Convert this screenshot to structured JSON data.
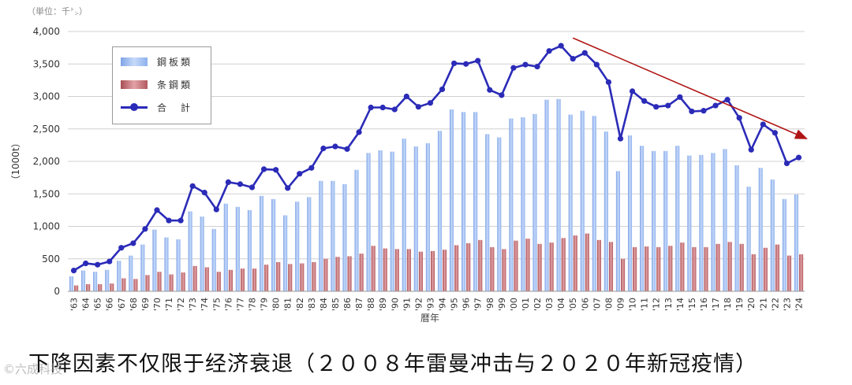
{
  "unit_note": "（単位：千㌧）",
  "caption": "下降因素不仅限于经济衰退（２００８年雷曼冲击与２０２０年新冠疫情）",
  "watermark": "©六成科技",
  "colors": {
    "plate": "#9dbdf0",
    "bar": "#c06b70",
    "total_line": "#2b2bb8",
    "trend_arrow": "#b01515",
    "grid": "#d0d0d0"
  },
  "chart_data": {
    "type": "bar",
    "title": "",
    "xlabel": "暦年",
    "ylabel": "（1000t）",
    "ylim": [
      0,
      4000
    ],
    "yticks": [
      0,
      500,
      1000,
      1500,
      2000,
      2500,
      3000,
      3500,
      4000
    ],
    "ytick_labels": [
      "0",
      "500",
      "1,000",
      "1,500",
      "2,000",
      "2,500",
      "3,000",
      "3,500",
      "4,000"
    ],
    "grid": true,
    "legend_position": "top-left",
    "categories": [
      "'63",
      "'64",
      "'65",
      "'66",
      "'67",
      "'68",
      "'69",
      "'70",
      "'71",
      "'72",
      "'73",
      "'74",
      "'75",
      "'76",
      "'77",
      "'78",
      "'79",
      "'80",
      "'81",
      "'82",
      "'83",
      "'84",
      "'85",
      "'86",
      "'87",
      "'88",
      "'89",
      "'90",
      "'91",
      "'92",
      "'93",
      "'94",
      "'95",
      "'96",
      "'97",
      "'98",
      "'99",
      "'00",
      "'01",
      "'02",
      "'03",
      "'04",
      "'05",
      "'06",
      "'07",
      "'08",
      "'09",
      "'10",
      "'11",
      "'12",
      "'13",
      "'14",
      "'15",
      "'16",
      "'17",
      "'18",
      "'19",
      "'20",
      "'21",
      "'22",
      "'23",
      "'24"
    ],
    "series": [
      {
        "name": "鋼板類",
        "kind": "bar",
        "values": [
          230,
          320,
          300,
          330,
          470,
          550,
          720,
          950,
          830,
          800,
          1230,
          1150,
          960,
          1350,
          1300,
          1250,
          1470,
          1420,
          1170,
          1380,
          1450,
          1700,
          1700,
          1650,
          1870,
          2130,
          2170,
          2150,
          2350,
          2230,
          2280,
          2470,
          2800,
          2760,
          2760,
          2420,
          2370,
          2660,
          2680,
          2730,
          2950,
          2960,
          2720,
          2780,
          2700,
          2460,
          1850,
          2400,
          2240,
          2160,
          2160,
          2240,
          2090,
          2100,
          2130,
          2190,
          1940,
          1610,
          1900,
          1720,
          1420,
          1490
        ]
      },
      {
        "name": "条鋼類",
        "kind": "bar",
        "values": [
          90,
          110,
          110,
          120,
          200,
          190,
          250,
          300,
          260,
          290,
          390,
          370,
          300,
          330,
          350,
          350,
          410,
          450,
          420,
          430,
          450,
          500,
          530,
          540,
          580,
          700,
          660,
          650,
          650,
          610,
          620,
          640,
          710,
          740,
          790,
          680,
          650,
          780,
          810,
          730,
          750,
          820,
          860,
          890,
          790,
          760,
          500,
          680,
          690,
          680,
          700,
          750,
          680,
          680,
          730,
          760,
          730,
          570,
          670,
          720,
          550,
          570
        ]
      },
      {
        "name": "合　計",
        "kind": "line",
        "values": [
          320,
          430,
          410,
          460,
          670,
          740,
          960,
          1250,
          1090,
          1090,
          1620,
          1520,
          1260,
          1680,
          1650,
          1600,
          1880,
          1870,
          1590,
          1810,
          1900,
          2200,
          2230,
          2190,
          2450,
          2830,
          2830,
          2800,
          3000,
          2840,
          2900,
          3110,
          3510,
          3500,
          3550,
          3100,
          3020,
          3440,
          3490,
          3460,
          3700,
          3780,
          3580,
          3670,
          3490,
          3220,
          2350,
          3080,
          2930,
          2840,
          2860,
          2990,
          2770,
          2780,
          2860,
          2950,
          2670,
          2180,
          2570,
          2440,
          1970,
          2060
        ]
      }
    ],
    "trend_arrow": {
      "from": {
        "x": "'05",
        "y": 3900
      },
      "to": {
        "x": "'24",
        "y": 2350
      }
    }
  }
}
